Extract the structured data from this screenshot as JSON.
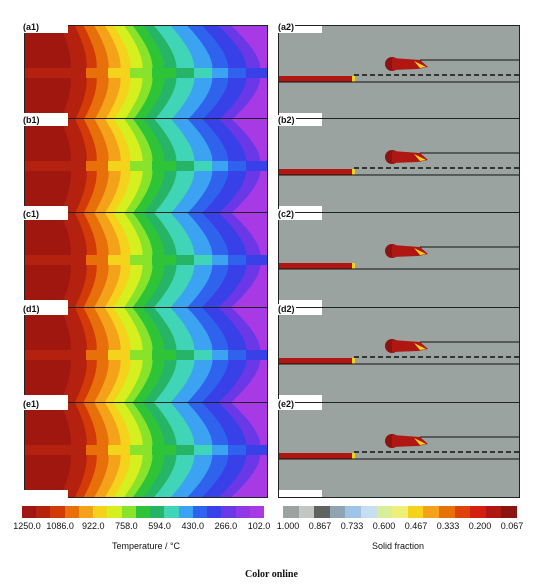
{
  "panels": {
    "left": [
      "(a1)",
      "(b1)",
      "(c1)",
      "(d1)",
      "(e1)"
    ],
    "right": [
      "(a2)",
      "(b2)",
      "(c2)",
      "(d2)",
      "(e2)"
    ]
  },
  "temperature_colorbar": {
    "title": "Temperature / °C",
    "ticks": [
      "1250.0",
      "1086.0",
      "922.0",
      "758.0",
      "594.0",
      "430.0",
      "266.0",
      "102.0"
    ],
    "colors": [
      "#a01710",
      "#b5210f",
      "#d23b08",
      "#e8700a",
      "#f4a21a",
      "#f5d21c",
      "#d6ef1f",
      "#88e32a",
      "#2fc337",
      "#26b466",
      "#3fd5b6",
      "#3ca3f2",
      "#2f63ee",
      "#3840e8",
      "#6a38e6",
      "#8f38e6",
      "#a83ae6"
    ]
  },
  "solid_fraction_colorbar": {
    "title": "Solid fraction",
    "ticks": [
      "1.000",
      "0.867",
      "0.733",
      "0.600",
      "0.467",
      "0.333",
      "0.200",
      "0.067"
    ],
    "colors": [
      "#9aa3a0",
      "#c2c7c4",
      "#5e6460",
      "#8fa4b0",
      "#9fc3e6",
      "#c7def0",
      "#d8ef9a",
      "#eef07a",
      "#f5d21c",
      "#f4a21a",
      "#e8700a",
      "#e0420c",
      "#d41f10",
      "#b01612",
      "#8b1410"
    ]
  },
  "caption": "Color online"
}
